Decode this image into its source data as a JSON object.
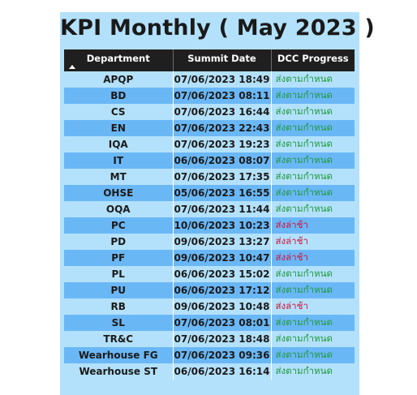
{
  "title": "KPI Monthly ( May 2023 )",
  "columns": {
    "department": "Department",
    "summit_date": "Summit Date",
    "dcc_progress": "DCC Progress"
  },
  "colors": {
    "on_time": "#1f9a3a",
    "late": "#d0143c",
    "row_light": "#b3e1fb",
    "row_dark": "#6ab7f6",
    "header": "#1f1f1f"
  },
  "sort_icon": "sort-ascending-icon",
  "rows": [
    {
      "department": "APQP",
      "summit_date": "07/06/2023 18:49",
      "dcc_progress": "ส่งตามกำหนด",
      "status": "on_time"
    },
    {
      "department": "BD",
      "summit_date": "07/06/2023 08:11",
      "dcc_progress": "ส่งตามกำหนด",
      "status": "on_time"
    },
    {
      "department": "CS",
      "summit_date": "07/06/2023 16:44",
      "dcc_progress": "ส่งตามกำหนด",
      "status": "on_time"
    },
    {
      "department": "EN",
      "summit_date": "07/06/2023 22:43",
      "dcc_progress": "ส่งตามกำหนด",
      "status": "on_time"
    },
    {
      "department": "IQA",
      "summit_date": "07/06/2023 19:23",
      "dcc_progress": "ส่งตามกำหนด",
      "status": "on_time"
    },
    {
      "department": "IT",
      "summit_date": "06/06/2023 08:07",
      "dcc_progress": "ส่งตามกำหนด",
      "status": "on_time"
    },
    {
      "department": "MT",
      "summit_date": "07/06/2023 17:35",
      "dcc_progress": "ส่งตามกำหนด",
      "status": "on_time"
    },
    {
      "department": "OHSE",
      "summit_date": "05/06/2023 16:55",
      "dcc_progress": "ส่งตามกำหนด",
      "status": "on_time"
    },
    {
      "department": "OQA",
      "summit_date": "07/06/2023 11:44",
      "dcc_progress": "ส่งตามกำหนด",
      "status": "on_time"
    },
    {
      "department": "PC",
      "summit_date": "10/06/2023 10:23",
      "dcc_progress": "ส่งล่าช้า",
      "status": "late"
    },
    {
      "department": "PD",
      "summit_date": "09/06/2023 13:27",
      "dcc_progress": "ส่งล่าช้า",
      "status": "late"
    },
    {
      "department": "PF",
      "summit_date": "09/06/2023 10:47",
      "dcc_progress": "ส่งล่าช้า",
      "status": "late"
    },
    {
      "department": "PL",
      "summit_date": "06/06/2023 15:02",
      "dcc_progress": "ส่งตามกำหนด",
      "status": "on_time"
    },
    {
      "department": "PU",
      "summit_date": "06/06/2023 17:12",
      "dcc_progress": "ส่งตามกำหนด",
      "status": "on_time"
    },
    {
      "department": "RB",
      "summit_date": "09/06/2023 10:48",
      "dcc_progress": "ส่งล่าช้า",
      "status": "late"
    },
    {
      "department": "SL",
      "summit_date": "07/06/2023 08:01",
      "dcc_progress": "ส่งตามกำหนด",
      "status": "on_time"
    },
    {
      "department": "TR&C",
      "summit_date": "07/06/2023 18:48",
      "dcc_progress": "ส่งตามกำหนด",
      "status": "on_time"
    },
    {
      "department": "Wearhouse  FG",
      "summit_date": "07/06/2023 09:36",
      "dcc_progress": "ส่งตามกำหนด",
      "status": "on_time"
    },
    {
      "department": "Wearhouse  ST",
      "summit_date": "06/06/2023 16:14",
      "dcc_progress": "ส่งตามกำหนด",
      "status": "on_time"
    }
  ]
}
